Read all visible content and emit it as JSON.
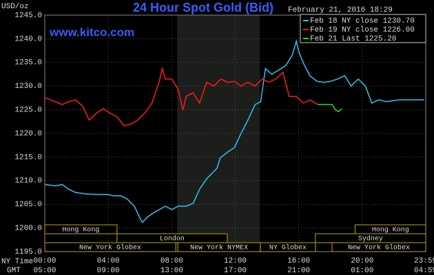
{
  "chart_data": {
    "type": "line",
    "title": "24 Hour Spot Gold (Bid)",
    "source": "www.kitco.com",
    "timestamp": "February 21, 2016 18:29",
    "y_unit": "USD/oz",
    "x_row_labels": [
      "NY Time",
      "GMT"
    ],
    "xlim": [
      0,
      24
    ],
    "xticks": [
      {
        "value": 0,
        "label": "00:00"
      },
      {
        "value": 4,
        "label": "04:00"
      },
      {
        "value": 8,
        "label": "08:00"
      },
      {
        "value": 12,
        "label": "12:00"
      },
      {
        "value": 16,
        "label": "16:00"
      },
      {
        "value": 20,
        "label": "20:00"
      },
      {
        "value": 23.98,
        "label": "23:59"
      }
    ],
    "xticks_gmt": [
      "05:00",
      "09:00",
      "13:00",
      "17:00",
      "21:00",
      "01:00",
      "04:59"
    ],
    "ylim": [
      1195,
      1245
    ],
    "yticks": [
      {
        "value": 1195,
        "label": "1195.0"
      },
      {
        "value": 1200,
        "label": "1200.0"
      },
      {
        "value": 1205,
        "label": "1205.0"
      },
      {
        "value": 1210,
        "label": "1210.0"
      },
      {
        "value": 1215,
        "label": "1215.0"
      },
      {
        "value": 1220,
        "label": "1220.0"
      },
      {
        "value": 1225,
        "label": "1225.0"
      },
      {
        "value": 1230,
        "label": "1230.0"
      },
      {
        "value": 1235,
        "label": "1235.0"
      },
      {
        "value": 1240,
        "label": "1240.0"
      },
      {
        "value": 1245,
        "label": "1245.0"
      }
    ],
    "grid": true,
    "shaded_region": [
      8.33,
      13.55
    ],
    "sessions": [
      {
        "label": "Hong Kong",
        "start": 0,
        "end": 4.55,
        "row": 0
      },
      {
        "label": "Hong Kong",
        "start": 19.55,
        "end": 24,
        "row": 0
      },
      {
        "label": "London",
        "start": 4.55,
        "end": 11.5,
        "row": 1
      },
      {
        "label": "Sydney",
        "start": 17.05,
        "end": 24,
        "row": 1
      },
      {
        "label": "New York Globex",
        "start": 0,
        "end": 8.25,
        "row": 2
      },
      {
        "label": "New York NYMEX",
        "start": 8.38,
        "end": 13.58,
        "row": 2
      },
      {
        "label": "NY Globex",
        "start": 13.58,
        "end": 17.05,
        "row": 2
      },
      {
        "label": "New York Globex",
        "start": 18.1,
        "end": 24,
        "row": 2
      }
    ],
    "series": [
      {
        "name": "Feb 18 NY close 1230.70",
        "color": "#2ec6f5",
        "x": [
          0,
          0.65,
          1.1,
          1.5,
          1.95,
          2.6,
          3.25,
          3.9,
          4.35,
          4.8,
          5.2,
          5.65,
          6.0,
          6.15,
          6.5,
          6.95,
          7.6,
          8.0,
          8.4,
          8.9,
          9.35,
          9.75,
          10.2,
          10.85,
          11.05,
          11.5,
          11.95,
          12.35,
          12.8,
          13.25,
          13.6,
          13.9,
          14.3,
          14.75,
          15.2,
          15.6,
          15.85,
          16.0,
          16.3,
          16.7,
          17.15,
          17.6,
          18.0,
          18.45,
          18.9,
          19.3,
          19.75,
          20.2,
          20.6,
          21.05,
          21.5,
          22.35,
          23.2,
          23.9
        ],
        "values": [
          1209.2,
          1208.9,
          1209.2,
          1208.2,
          1207.5,
          1207.2,
          1207.1,
          1207.1,
          1206.8,
          1206.8,
          1206.1,
          1204.6,
          1202.0,
          1201.2,
          1202.4,
          1203.4,
          1204.6,
          1203.9,
          1204.6,
          1204.6,
          1205.2,
          1208.2,
          1210.4,
          1212.6,
          1214.8,
          1216.0,
          1217.0,
          1219.9,
          1222.8,
          1226.1,
          1226.7,
          1233.7,
          1232.5,
          1233.4,
          1234.4,
          1236.6,
          1239.5,
          1237.3,
          1234.8,
          1232.2,
          1231.0,
          1230.8,
          1231.0,
          1231.5,
          1232.2,
          1230.0,
          1231.5,
          1230.0,
          1226.4,
          1227.1,
          1226.7,
          1227.1,
          1227.1,
          1227.1
        ]
      },
      {
        "name": "Feb 19 NY close 1226.00",
        "color": "#ff1a1a",
        "x": [
          0,
          0.65,
          1.1,
          1.5,
          1.95,
          2.4,
          2.8,
          3.25,
          3.7,
          4.1,
          4.55,
          5.0,
          5.45,
          5.85,
          6.3,
          6.75,
          7.2,
          7.4,
          7.6,
          8.0,
          8.4,
          8.7,
          8.9,
          9.35,
          9.75,
          10.2,
          10.65,
          11.1,
          11.5,
          11.95,
          12.35,
          12.8,
          13.25,
          13.7,
          14.1,
          14.55,
          15.0,
          15.4,
          15.85,
          16.3,
          16.7,
          17.2
        ],
        "values": [
          1227.6,
          1226.7,
          1226.1,
          1226.7,
          1227.1,
          1225.7,
          1222.8,
          1224.3,
          1225.2,
          1224.3,
          1223.5,
          1221.6,
          1222.0,
          1222.8,
          1224.3,
          1226.4,
          1230.8,
          1233.7,
          1231.5,
          1231.5,
          1229.3,
          1224.9,
          1227.8,
          1228.6,
          1226.4,
          1230.8,
          1230.0,
          1231.5,
          1230.8,
          1231.0,
          1230.0,
          1230.8,
          1230.0,
          1231.5,
          1230.8,
          1231.5,
          1232.9,
          1227.8,
          1227.8,
          1226.4,
          1227.1,
          1226.1
        ]
      },
      {
        "name": "Feb 21 Last 1225.20",
        "color": "#22e022",
        "x": [
          17.2,
          18.1,
          18.3,
          18.5,
          18.7
        ],
        "values": [
          1226.1,
          1226.1,
          1225.0,
          1224.6,
          1225.2
        ]
      }
    ]
  }
}
